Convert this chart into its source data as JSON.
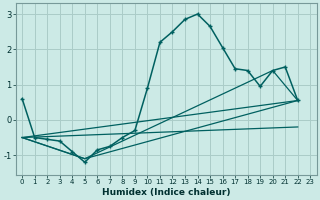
{
  "xlabel": "Humidex (Indice chaleur)",
  "bg_color": "#cceae6",
  "grid_color": "#aaccc8",
  "line_color": "#006060",
  "xlim": [
    -0.5,
    23.5
  ],
  "ylim": [
    -1.55,
    3.3
  ],
  "xticks": [
    0,
    1,
    2,
    3,
    4,
    5,
    6,
    7,
    8,
    9,
    10,
    11,
    12,
    13,
    14,
    15,
    16,
    17,
    18,
    19,
    20,
    21,
    22,
    23
  ],
  "yticks": [
    -1,
    0,
    1,
    2,
    3
  ],
  "main_x": [
    0,
    1,
    2,
    3,
    4,
    5,
    6,
    7,
    8,
    9,
    10,
    11,
    12,
    13,
    14,
    15,
    16,
    17,
    18,
    19,
    20,
    21,
    22
  ],
  "main_y": [
    0.6,
    -0.5,
    -0.55,
    -0.6,
    -0.9,
    -1.2,
    -0.85,
    -0.75,
    -0.5,
    -0.3,
    0.9,
    2.2,
    2.5,
    2.85,
    3.0,
    2.65,
    2.05,
    1.45,
    1.4,
    0.95,
    1.4,
    1.5,
    0.55
  ],
  "line1_x": [
    0,
    22
  ],
  "line1_y": [
    -0.5,
    -0.2
  ],
  "line2_x": [
    0,
    5,
    22
  ],
  "line2_y": [
    -0.5,
    -1.1,
    0.55
  ],
  "line3_x": [
    0,
    5,
    20,
    22
  ],
  "line3_y": [
    -0.5,
    -1.1,
    1.4,
    0.55
  ],
  "line4_x": [
    0,
    22
  ],
  "line4_y": [
    -0.5,
    0.55
  ]
}
